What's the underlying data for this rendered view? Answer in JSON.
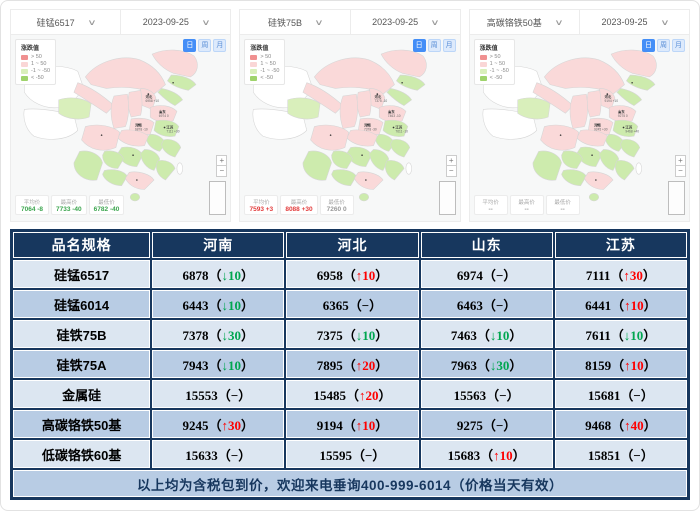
{
  "colors": {
    "navy": "#17375E",
    "row_light": "#DCE6F1",
    "row_mid": "#B8CCE4",
    "up_red": "#FE0000",
    "down_green": "#00A650",
    "province_pink": "#FAD9D9",
    "province_green": "#CDEBAD",
    "accent_blue": "#448ef7"
  },
  "maps": [
    {
      "product": "硅锰6517",
      "date": "2023-09-25",
      "legend": {
        "title": "涨跌值",
        "items": [
          {
            "label": "> 50",
            "color": "#F09090"
          },
          {
            "label": "1 ~ 50",
            "color": "#FAD6D6"
          },
          {
            "label": "-1 ~ -50",
            "color": "#D9EFBB"
          },
          {
            "label": "< -50",
            "color": "#9FD36C"
          }
        ]
      },
      "periods": [
        "日",
        "周",
        "月"
      ],
      "active_period": 0,
      "labels": [
        {
          "name": "河北",
          "text": "6958 +10"
        },
        {
          "name": "山东",
          "text": "6974 0"
        },
        {
          "name": "河南",
          "text": "6878 -10"
        },
        {
          "name": "江苏",
          "text": "7111 +30"
        }
      ],
      "stats": [
        {
          "label": "平均价",
          "value": "7064 -8",
          "tone": "down"
        },
        {
          "label": "最高价",
          "value": "7733 -40",
          "tone": "down"
        },
        {
          "label": "最低价",
          "value": "6782 -40",
          "tone": "down"
        }
      ]
    },
    {
      "product": "硅铁75B",
      "date": "2023-09-25",
      "legend": {
        "title": "涨跌值",
        "items": [
          {
            "label": "> 50",
            "color": "#F09090"
          },
          {
            "label": "1 ~ 50",
            "color": "#FAD6D6"
          },
          {
            "label": "-1 ~ -50",
            "color": "#D9EFBB"
          },
          {
            "label": "< -50",
            "color": "#9FD36C"
          }
        ]
      },
      "periods": [
        "日",
        "周",
        "月"
      ],
      "active_period": 0,
      "labels": [
        {
          "name": "河北",
          "text": "7375 -10"
        },
        {
          "name": "山东",
          "text": "7463 -10"
        },
        {
          "name": "河南",
          "text": "7378 -30"
        },
        {
          "name": "江苏",
          "text": "7611 -10"
        }
      ],
      "stats": [
        {
          "label": "平均价",
          "value": "7593 +3",
          "tone": "up"
        },
        {
          "label": "最高价",
          "value": "8088 +30",
          "tone": "up"
        },
        {
          "label": "最低价",
          "value": "7260 0",
          "tone": "flat"
        }
      ]
    },
    {
      "product": "高碳铬铁50基",
      "date": "2023-09-25",
      "legend": {
        "title": "涨跌值",
        "items": [
          {
            "label": "> 50",
            "color": "#F09090"
          },
          {
            "label": "1 ~ 50",
            "color": "#FAD6D6"
          },
          {
            "label": "-1 ~ -50",
            "color": "#D9EFBB"
          },
          {
            "label": "< -50",
            "color": "#9FD36C"
          }
        ]
      },
      "periods": [
        "日",
        "周",
        "月"
      ],
      "active_period": 0,
      "labels": [
        {
          "name": "河北",
          "text": "9194 +10"
        },
        {
          "name": "山东",
          "text": "9275 0"
        },
        {
          "name": "河南",
          "text": "9245 +30"
        },
        {
          "name": "江苏",
          "text": "9468 +40"
        }
      ],
      "stats": [
        {
          "label": "平均价",
          "value": "--",
          "tone": "flat"
        },
        {
          "label": "最高价",
          "value": "--",
          "tone": "flat"
        },
        {
          "label": "最低价",
          "value": "--",
          "tone": "flat"
        }
      ]
    }
  ],
  "table": {
    "headers": [
      "品名规格",
      "河南",
      "河北",
      "山东",
      "江苏"
    ],
    "rows": [
      {
        "name": "硅锰6517",
        "cells": [
          {
            "value": "6878",
            "delta": "10",
            "dir": "down"
          },
          {
            "value": "6958",
            "delta": "10",
            "dir": "up"
          },
          {
            "value": "6974",
            "dir": "flat"
          },
          {
            "value": "7111",
            "delta": "30",
            "dir": "up"
          }
        ]
      },
      {
        "name": "硅锰6014",
        "cells": [
          {
            "value": "6443",
            "delta": "10",
            "dir": "down"
          },
          {
            "value": "6365",
            "dir": "flat"
          },
          {
            "value": "6463",
            "dir": "flat"
          },
          {
            "value": "6441",
            "delta": "10",
            "dir": "up"
          }
        ]
      },
      {
        "name": "硅铁75B",
        "cells": [
          {
            "value": "7378",
            "delta": "30",
            "dir": "down"
          },
          {
            "value": "7375",
            "delta": "10",
            "dir": "down"
          },
          {
            "value": "7463",
            "delta": "10",
            "dir": "down"
          },
          {
            "value": "7611",
            "delta": "10",
            "dir": "down"
          }
        ]
      },
      {
        "name": "硅铁75A",
        "cells": [
          {
            "value": "7943",
            "delta": "10",
            "dir": "down"
          },
          {
            "value": "7895",
            "delta": "20",
            "dir": "up"
          },
          {
            "value": "7963",
            "delta": "30",
            "dir": "down"
          },
          {
            "value": "8159",
            "delta": "10",
            "dir": "up"
          }
        ]
      },
      {
        "name": "金属硅",
        "cells": [
          {
            "value": "15553",
            "dir": "flat"
          },
          {
            "value": "15485",
            "delta": "20",
            "dir": "up"
          },
          {
            "value": "15563",
            "dir": "flat"
          },
          {
            "value": "15681",
            "dir": "flat"
          }
        ]
      },
      {
        "name": "高碳铬铁50基",
        "cells": [
          {
            "value": "9245",
            "delta": "30",
            "dir": "up"
          },
          {
            "value": "9194",
            "delta": "10",
            "dir": "up"
          },
          {
            "value": "9275",
            "dir": "flat"
          },
          {
            "value": "9468",
            "delta": "40",
            "dir": "up"
          }
        ]
      },
      {
        "name": "低碳铬铁60基",
        "cells": [
          {
            "value": "15633",
            "dir": "flat"
          },
          {
            "value": "15595",
            "dir": "flat"
          },
          {
            "value": "15683",
            "delta": "10",
            "dir": "up"
          },
          {
            "value": "15851",
            "dir": "flat"
          }
        ]
      }
    ],
    "footer": "以上均为含税包到价，欢迎来电垂询400-999-6014（价格当天有效）"
  }
}
